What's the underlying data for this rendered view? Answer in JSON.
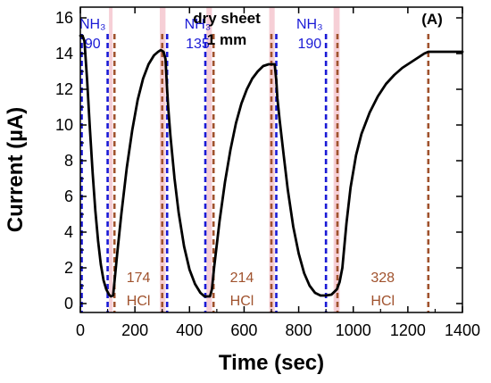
{
  "chart_data": {
    "type": "line",
    "title_lines": [
      "dry sheet",
      "1 mm"
    ],
    "panel_label": "(A)",
    "xlabel": "Time (sec)",
    "ylabel": "Current (µA)",
    "xlim": [
      0,
      1400
    ],
    "ylim": [
      -0.5,
      16.6
    ],
    "xticks": [
      0,
      200,
      400,
      600,
      800,
      1000,
      1200,
      1400
    ],
    "yticks": [
      0,
      2,
      4,
      6,
      8,
      10,
      12,
      14,
      16
    ],
    "grid": false,
    "series": [
      {
        "color": "#000000",
        "x": [
          0,
          8,
          15,
          25,
          35,
          45,
          55,
          65,
          75,
          85,
          95,
          105,
          112,
          120,
          125,
          135,
          150,
          170,
          190,
          210,
          230,
          250,
          270,
          285,
          295,
          305,
          312,
          318,
          322,
          330,
          345,
          360,
          380,
          400,
          420,
          440,
          455,
          465,
          475,
          482,
          490,
          510,
          530,
          550,
          570,
          590,
          610,
          630,
          650,
          670,
          690,
          705,
          712,
          718,
          722,
          730,
          745,
          760,
          780,
          800,
          820,
          840,
          860,
          880,
          900,
          920,
          940,
          950,
          960,
          975,
          990,
          1010,
          1030,
          1060,
          1090,
          1120,
          1150,
          1180,
          1210,
          1240,
          1260,
          1275,
          1300,
          1350,
          1400
        ],
        "y": [
          15.0,
          15.0,
          14.7,
          12.5,
          9.8,
          7.3,
          5.2,
          3.5,
          2.2,
          1.3,
          0.8,
          0.5,
          0.4,
          0.45,
          1.2,
          2.8,
          5.0,
          7.6,
          9.7,
          11.4,
          12.6,
          13.4,
          13.9,
          14.1,
          14.2,
          14.1,
          13.7,
          12.0,
          11.0,
          9.4,
          7.0,
          5.1,
          3.2,
          1.9,
          1.1,
          0.6,
          0.4,
          0.4,
          0.4,
          0.8,
          2.0,
          4.6,
          6.8,
          8.6,
          10.1,
          11.2,
          12.0,
          12.6,
          13.0,
          13.3,
          13.4,
          13.4,
          13.4,
          12.5,
          11.5,
          10.3,
          8.3,
          6.4,
          4.3,
          2.8,
          1.7,
          1.0,
          0.6,
          0.45,
          0.45,
          0.5,
          0.8,
          1.2,
          2.0,
          4.5,
          6.5,
          8.3,
          9.5,
          10.7,
          11.6,
          12.3,
          12.8,
          13.2,
          13.5,
          13.8,
          14.0,
          14.1,
          14.1,
          14.1,
          14.1
        ]
      }
    ],
    "events": [
      {
        "x": 5,
        "type": "NH3",
        "color": "#1a1ad6"
      },
      {
        "x": 100,
        "type": "NH3",
        "color": "#1a1ad6"
      },
      {
        "x": 125,
        "type": "HCl",
        "color": "#a0522d"
      },
      {
        "x": 300,
        "type": "HCl",
        "color": "#a0522d"
      },
      {
        "x": 318,
        "type": "NH3",
        "color": "#1a1ad6"
      },
      {
        "x": 458,
        "type": "NH3",
        "color": "#1a1ad6"
      },
      {
        "x": 488,
        "type": "HCl",
        "color": "#a0522d"
      },
      {
        "x": 700,
        "type": "HCl",
        "color": "#a0522d"
      },
      {
        "x": 718,
        "type": "NH3",
        "color": "#1a1ad6"
      },
      {
        "x": 900,
        "type": "NH3",
        "color": "#1a1ad6"
      },
      {
        "x": 942,
        "type": "HCl",
        "color": "#a0522d"
      },
      {
        "x": 1275,
        "type": "HCl",
        "color": "#a0522d"
      }
    ],
    "highlights": [
      {
        "x0": 105,
        "x1": 118,
        "color": "#f6cfd6"
      },
      {
        "x0": 291,
        "x1": 312,
        "color": "#f6cfd6"
      },
      {
        "x0": 462,
        "x1": 482,
        "color": "#f6cfd6"
      },
      {
        "x0": 692,
        "x1": 712,
        "color": "#f6cfd6"
      },
      {
        "x0": 928,
        "x1": 950,
        "color": "#f6cfd6"
      }
    ],
    "annotations": [
      {
        "label_top": "NH₃",
        "label_bottom": "90",
        "x": 45,
        "y_top": 15.4,
        "y_bottom": 14.3,
        "color": "#1a1ad6"
      },
      {
        "label_top": "NH₃",
        "label_bottom": "135",
        "x": 430,
        "y_top": 15.4,
        "y_bottom": 14.3,
        "color": "#1a1ad6"
      },
      {
        "label_top": "NH₃",
        "label_bottom": "190",
        "x": 840,
        "y_top": 15.4,
        "y_bottom": 14.3,
        "color": "#1a1ad6"
      },
      {
        "label_top": "174",
        "label_bottom": "HCl",
        "x": 213,
        "y_top": 1.2,
        "y_bottom": -0.1,
        "color": "#a0522d"
      },
      {
        "label_top": "214",
        "label_bottom": "HCl",
        "x": 592,
        "y_top": 1.2,
        "y_bottom": -0.1,
        "color": "#a0522d"
      },
      {
        "label_top": "328",
        "label_bottom": "HCl",
        "x": 1108,
        "y_top": 1.2,
        "y_bottom": -0.1,
        "color": "#a0522d"
      }
    ]
  }
}
